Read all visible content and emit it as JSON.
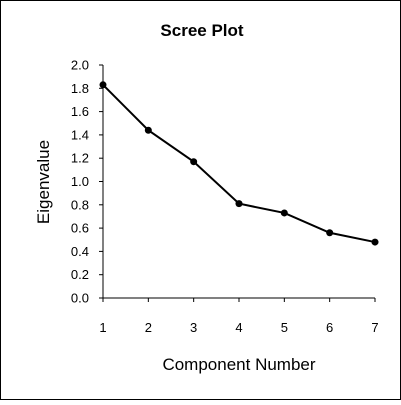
{
  "chart_data": {
    "type": "line",
    "title": "Scree Plot",
    "xlabel": "Component Number",
    "ylabel": "Eigenvalue",
    "x": [
      1,
      2,
      3,
      4,
      5,
      6,
      7
    ],
    "xticks": [
      "1",
      "2",
      "3",
      "4",
      "5",
      "6",
      "7"
    ],
    "yticks": [
      "0.0",
      "0.2",
      "0.4",
      "0.6",
      "0.8",
      "1.0",
      "1.2",
      "1.4",
      "1.6",
      "1.8",
      "2.0"
    ],
    "ylim": [
      0,
      2
    ],
    "xlim": [
      1,
      7
    ],
    "grid": false,
    "legend": "none",
    "series": [
      {
        "values": [
          1.83,
          1.44,
          1.17,
          0.81,
          0.73,
          0.56,
          0.48
        ],
        "color": "#000000",
        "marker": "circle"
      }
    ]
  }
}
